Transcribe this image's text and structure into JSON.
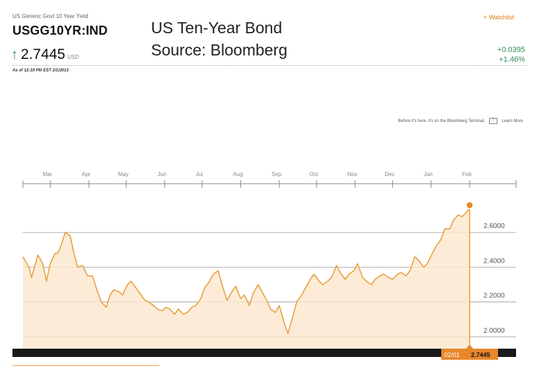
{
  "header": {
    "subtitle": "US Generic Govt 10 Year Yield",
    "ticker": "USGG10YR:IND",
    "price": "2.7445",
    "currency": "USD",
    "as_of": "As of 12:19 PM EST 2/1/2013",
    "watchlist": "+ Watchlist",
    "change_abs": "+0.0395",
    "change_pct": "+1.46%",
    "arrow_icon": "up-arrow-icon"
  },
  "overlay": {
    "title_line1": "US Ten-Year Bond",
    "title_line2": "Source: Bloomberg"
  },
  "promo": {
    "text": "Before it's here, it's on the Bloomberg Terminal.",
    "link": "Learn More"
  },
  "colors": {
    "accent": "#e8a040",
    "fill": "#fbe7cf",
    "positive": "#2e8b57",
    "bar": "#1a1a1a",
    "tag": "#e8872a"
  },
  "chart_data": {
    "type": "area",
    "title": "",
    "xlabel": "",
    "ylabel": "",
    "month_ticks": [
      "Mar",
      "Apr",
      "May",
      "Jun",
      "Jul",
      "Aug",
      "Sep",
      "Oct",
      "Nov",
      "Dec",
      "Jan",
      "Feb"
    ],
    "y_ticks": [
      "2.6000",
      "2.4000",
      "2.2000",
      "2.0000"
    ],
    "ylim": [
      1.96,
      2.78
    ],
    "grid": true,
    "last_value_tag": {
      "date": "02/01",
      "value": "2.7445"
    },
    "x": [
      "2012-02-08",
      "2012-02-13",
      "2012-02-15",
      "2012-02-20",
      "2012-02-24",
      "2012-02-27",
      "2012-03-01",
      "2012-03-05",
      "2012-03-07",
      "2012-03-10",
      "2012-03-13",
      "2012-03-17",
      "2012-03-20",
      "2012-03-23",
      "2012-03-27",
      "2012-03-31",
      "2012-04-04",
      "2012-04-07",
      "2012-04-11",
      "2012-04-15",
      "2012-04-18",
      "2012-04-21",
      "2012-04-25",
      "2012-04-28",
      "2012-05-02",
      "2012-05-05",
      "2012-05-09",
      "2012-05-12",
      "2012-05-16",
      "2012-05-19",
      "2012-05-23",
      "2012-05-26",
      "2012-05-30",
      "2012-06-02",
      "2012-06-05",
      "2012-06-09",
      "2012-06-12",
      "2012-06-16",
      "2012-06-19",
      "2012-06-23",
      "2012-06-26",
      "2012-06-30",
      "2012-07-03",
      "2012-07-07",
      "2012-07-10",
      "2012-07-14",
      "2012-07-17",
      "2012-07-21",
      "2012-07-25",
      "2012-07-28",
      "2012-08-01",
      "2012-08-04",
      "2012-08-08",
      "2012-08-11",
      "2012-08-15",
      "2012-08-18",
      "2012-08-22",
      "2012-08-25",
      "2012-08-29",
      "2012-09-01",
      "2012-09-05",
      "2012-09-08",
      "2012-09-12",
      "2012-09-15",
      "2012-09-19",
      "2012-09-22",
      "2012-09-26",
      "2012-09-29",
      "2012-10-03",
      "2012-10-06",
      "2012-10-10",
      "2012-10-13",
      "2012-10-17",
      "2012-10-20",
      "2012-10-24",
      "2012-10-27",
      "2012-10-31",
      "2012-11-03",
      "2012-11-07",
      "2012-11-10",
      "2012-11-14",
      "2012-11-17",
      "2012-11-21",
      "2012-11-24",
      "2012-11-28",
      "2012-12-01",
      "2012-12-05",
      "2012-12-08",
      "2012-12-12",
      "2012-12-15",
      "2012-12-19",
      "2012-12-22",
      "2012-12-26",
      "2012-12-29",
      "2013-01-02",
      "2013-01-05",
      "2013-01-09",
      "2013-01-12",
      "2013-01-16",
      "2013-01-19",
      "2013-01-23",
      "2013-01-26",
      "2013-01-30",
      "2013-02-01"
    ],
    "values": [
      2.46,
      2.4,
      2.34,
      2.47,
      2.42,
      2.32,
      2.42,
      2.48,
      2.48,
      2.53,
      2.6,
      2.58,
      2.48,
      2.4,
      2.41,
      2.35,
      2.35,
      2.28,
      2.2,
      2.17,
      2.24,
      2.27,
      2.26,
      2.24,
      2.3,
      2.32,
      2.28,
      2.25,
      2.21,
      2.2,
      2.18,
      2.16,
      2.15,
      2.17,
      2.16,
      2.13,
      2.16,
      2.13,
      2.14,
      2.17,
      2.18,
      2.22,
      2.28,
      2.32,
      2.36,
      2.38,
      2.3,
      2.21,
      2.26,
      2.29,
      2.22,
      2.24,
      2.18,
      2.25,
      2.3,
      2.26,
      2.21,
      2.16,
      2.14,
      2.18,
      2.08,
      2.02,
      2.12,
      2.2,
      2.24,
      2.28,
      2.33,
      2.36,
      2.32,
      2.3,
      2.32,
      2.34,
      2.41,
      2.37,
      2.33,
      2.36,
      2.38,
      2.42,
      2.34,
      2.32,
      2.3,
      2.33,
      2.35,
      2.36,
      2.34,
      2.33,
      2.36,
      2.37,
      2.35,
      2.38,
      2.46,
      2.44,
      2.4,
      2.42,
      2.48,
      2.52,
      2.56,
      2.62,
      2.62,
      2.67,
      2.7,
      2.69,
      2.72,
      2.7445
    ]
  }
}
